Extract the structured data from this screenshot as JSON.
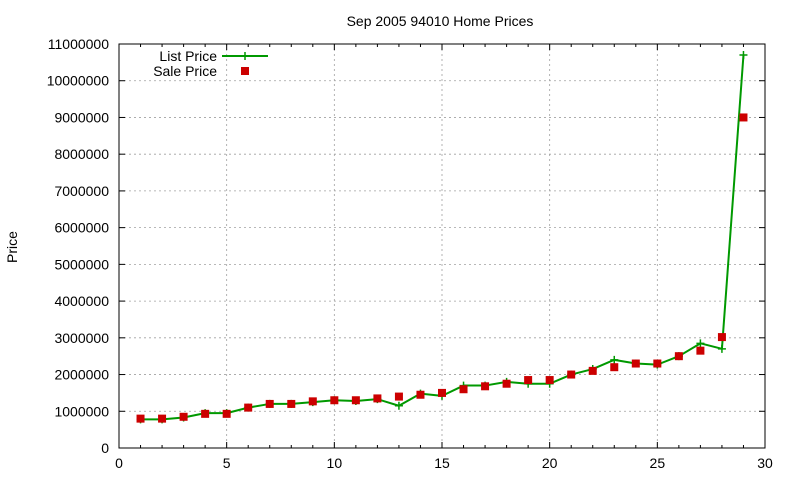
{
  "chart_data": {
    "type": "line",
    "title": "Sep 2005 94010 Home Prices",
    "xlabel": "",
    "ylabel": "Price",
    "xlim": [
      0,
      30
    ],
    "ylim": [
      0,
      11000000
    ],
    "xticks": [
      0,
      5,
      10,
      15,
      20,
      25,
      30
    ],
    "yticks": [
      0,
      1000000,
      2000000,
      3000000,
      4000000,
      5000000,
      6000000,
      7000000,
      8000000,
      9000000,
      10000000,
      11000000
    ],
    "x_tick_labels": [
      "0",
      "5",
      "10",
      "15",
      "20",
      "25",
      "30"
    ],
    "y_tick_labels": [
      "0",
      "1000000",
      "2000000",
      "3000000",
      "4000000",
      "5000000",
      "6000000",
      "7000000",
      "8000000",
      "9000000",
      "10000000",
      "11000000"
    ],
    "grid": true,
    "legend_position": "top-left",
    "x": [
      1,
      2,
      3,
      4,
      5,
      6,
      7,
      8,
      9,
      10,
      11,
      12,
      13,
      14,
      15,
      16,
      17,
      18,
      19,
      20,
      21,
      22,
      23,
      24,
      25,
      26,
      27,
      28,
      29
    ],
    "series": [
      {
        "name": "List Price",
        "style": "line-with-plus",
        "color": "#009900",
        "values": [
          780000,
          780000,
          830000,
          950000,
          950000,
          1100000,
          1200000,
          1200000,
          1250000,
          1300000,
          1280000,
          1330000,
          1150000,
          1480000,
          1420000,
          1700000,
          1700000,
          1800000,
          1750000,
          1750000,
          2000000,
          2150000,
          2400000,
          2300000,
          2270000,
          2500000,
          2850000,
          2700000,
          10700000
        ]
      },
      {
        "name": "Sale Price",
        "style": "square-markers",
        "color": "#cc0000",
        "values": [
          800000,
          800000,
          850000,
          930000,
          930000,
          1100000,
          1200000,
          1200000,
          1270000,
          1300000,
          1300000,
          1350000,
          1400000,
          1450000,
          1500000,
          1600000,
          1680000,
          1750000,
          1850000,
          1850000,
          2000000,
          2100000,
          2200000,
          2300000,
          2300000,
          2500000,
          2650000,
          3020000,
          9000000
        ]
      }
    ]
  }
}
